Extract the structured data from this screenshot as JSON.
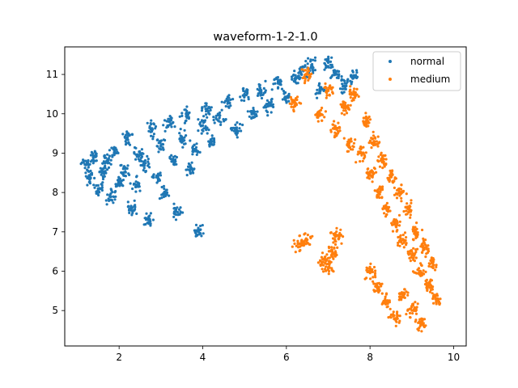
{
  "chart_data": {
    "type": "scatter",
    "title": "waveform-1-2-1.0",
    "xlabel": "",
    "ylabel": "",
    "xlim": [
      0.7,
      10.3
    ],
    "ylim": [
      4.1,
      11.7
    ],
    "xticks": [
      2,
      4,
      6,
      8,
      10
    ],
    "yticks": [
      5,
      6,
      7,
      8,
      9,
      10,
      11
    ],
    "xtick_labels": [
      "2",
      "4",
      "6",
      "8",
      "10"
    ],
    "ytick_labels": [
      "5",
      "6",
      "7",
      "8",
      "9",
      "10",
      "11"
    ],
    "grid": false,
    "legend_position": "top-right",
    "series": [
      {
        "name": "normal",
        "color": "#1f77b4",
        "description_points": [
          [
            1.2,
            8.7
          ],
          [
            1.3,
            8.4
          ],
          [
            1.4,
            8.9
          ],
          [
            1.5,
            8.1
          ],
          [
            1.6,
            8.5
          ],
          [
            1.7,
            8.8
          ],
          [
            1.8,
            7.9
          ],
          [
            1.9,
            9.1
          ],
          [
            2.0,
            8.3
          ],
          [
            2.1,
            8.6
          ],
          [
            2.2,
            9.4
          ],
          [
            2.3,
            7.6
          ],
          [
            2.4,
            8.2
          ],
          [
            2.5,
            9.0
          ],
          [
            2.6,
            8.7
          ],
          [
            2.7,
            7.3
          ],
          [
            2.8,
            9.6
          ],
          [
            2.9,
            8.4
          ],
          [
            3.0,
            9.2
          ],
          [
            3.1,
            8.0
          ],
          [
            3.2,
            9.8
          ],
          [
            3.3,
            8.8
          ],
          [
            3.4,
            7.5
          ],
          [
            3.5,
            9.4
          ],
          [
            3.6,
            10.0
          ],
          [
            3.7,
            8.6
          ],
          [
            3.8,
            9.1
          ],
          [
            3.9,
            7.0
          ],
          [
            4.0,
            9.7
          ],
          [
            4.1,
            10.1
          ],
          [
            4.2,
            9.3
          ],
          [
            4.4,
            9.9
          ],
          [
            4.6,
            10.3
          ],
          [
            4.8,
            9.6
          ],
          [
            5.0,
            10.5
          ],
          [
            5.2,
            10.0
          ],
          [
            5.4,
            10.6
          ],
          [
            5.6,
            10.2
          ],
          [
            5.8,
            10.8
          ],
          [
            6.0,
            10.4
          ],
          [
            6.2,
            10.9
          ],
          [
            6.4,
            11.1
          ],
          [
            6.6,
            11.2
          ],
          [
            6.8,
            10.6
          ],
          [
            7.0,
            11.3
          ],
          [
            7.2,
            11.0
          ],
          [
            7.4,
            10.7
          ],
          [
            7.6,
            10.9
          ]
        ]
      },
      {
        "name": "medium",
        "color": "#ff7f0e",
        "description_points": [
          [
            6.2,
            10.3
          ],
          [
            6.5,
            11.0
          ],
          [
            6.8,
            10.0
          ],
          [
            7.0,
            10.6
          ],
          [
            7.2,
            9.6
          ],
          [
            7.4,
            10.2
          ],
          [
            7.5,
            9.2
          ],
          [
            7.6,
            10.5
          ],
          [
            7.8,
            9.0
          ],
          [
            7.9,
            9.8
          ],
          [
            8.0,
            8.5
          ],
          [
            8.1,
            9.3
          ],
          [
            8.2,
            8.0
          ],
          [
            8.3,
            8.8
          ],
          [
            8.4,
            7.6
          ],
          [
            8.5,
            8.4
          ],
          [
            8.6,
            7.2
          ],
          [
            8.7,
            8.0
          ],
          [
            8.8,
            6.8
          ],
          [
            8.9,
            7.6
          ],
          [
            9.0,
            6.4
          ],
          [
            9.1,
            7.0
          ],
          [
            9.2,
            6.0
          ],
          [
            9.3,
            6.6
          ],
          [
            9.4,
            5.6
          ],
          [
            9.5,
            6.2
          ],
          [
            9.6,
            5.3
          ],
          [
            9.0,
            5.0
          ],
          [
            8.8,
            5.4
          ],
          [
            8.6,
            4.8
          ],
          [
            9.2,
            4.7
          ],
          [
            8.4,
            5.2
          ],
          [
            6.3,
            6.7
          ],
          [
            6.5,
            6.8
          ],
          [
            6.9,
            6.3
          ],
          [
            7.1,
            6.5
          ],
          [
            7.2,
            6.9
          ],
          [
            7.0,
            6.1
          ],
          [
            8.2,
            5.6
          ],
          [
            8.0,
            6.0
          ]
        ]
      }
    ]
  }
}
